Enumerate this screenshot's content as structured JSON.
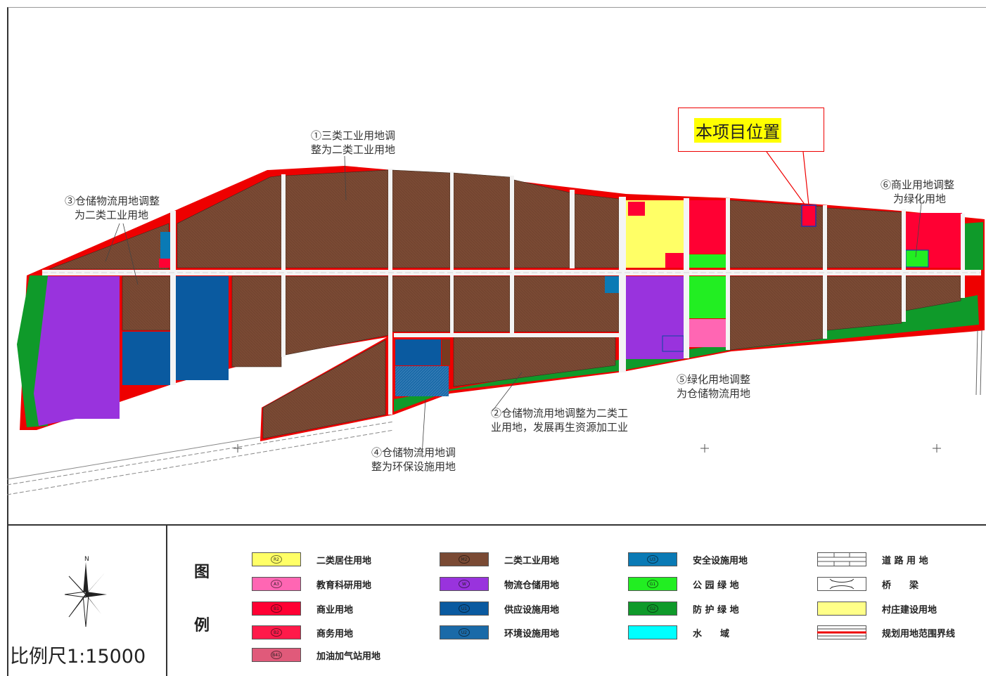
{
  "colors": {
    "industrial": "#7a4a34",
    "residential": "#ffff66",
    "education": "#ff66b3",
    "commercial": "#ff0033",
    "business": "#ff1a4a",
    "gas_station": "#e05a7a",
    "logistics": "#9933dd",
    "supply": "#0a5aa0",
    "environmental": "#1a6aa8",
    "safety": "#0a7ab5",
    "park": "#22ee22",
    "protective_green": "#0f9a2a",
    "water": "#00ffff",
    "village": "#ffff88",
    "boundary": "#ee0000"
  },
  "callout": {
    "label": "本项目位置"
  },
  "notes": [
    {
      "id": "note-1",
      "lines": [
        "①三类工业用地调",
        "整为二类工业用地"
      ]
    },
    {
      "id": "note-2",
      "lines": [
        "②仓储物流用地调整为二类工",
        "业用地，发展再生资源加工业"
      ]
    },
    {
      "id": "note-3",
      "lines": [
        "③仓储物流用地调整",
        "为二类工业用地"
      ]
    },
    {
      "id": "note-4",
      "lines": [
        "④仓储物流用地调",
        "整为环保设施用地"
      ]
    },
    {
      "id": "note-5",
      "lines": [
        "⑤绿化用地调整",
        "为仓储物流用地"
      ]
    },
    {
      "id": "note-6",
      "lines": [
        "⑥商业用地调整",
        "为绿化用地"
      ]
    }
  ],
  "legend": {
    "title_top": "图",
    "title_bottom": "例",
    "items": [
      {
        "label": "二类居住用地",
        "code": "R2",
        "color": "#ffff66"
      },
      {
        "label": "教育科研用地",
        "code": "A3",
        "color": "#ff66b3"
      },
      {
        "label": "商业用地",
        "code": "B1",
        "color": "#ff0033"
      },
      {
        "label": "商务用地",
        "code": "B2",
        "color": "#ff1a4a"
      },
      {
        "label": "加油加气站用地",
        "code": "B41",
        "color": "#e05a7a"
      },
      {
        "label": "二类工业用地",
        "code": "M2",
        "color": "#7a4a34"
      },
      {
        "label": "物流仓储用地",
        "code": "W",
        "color": "#9933dd"
      },
      {
        "label": "供应设施用地",
        "code": "U1",
        "color": "#0a5aa0"
      },
      {
        "label": "环境设施用地",
        "code": "U2",
        "color": "#1a6aa8"
      },
      {
        "label": "安全设施用地",
        "code": "U3",
        "color": "#0a7ab5"
      },
      {
        "label": "公 园 绿 地",
        "code": "G1",
        "color": "#22ee22"
      },
      {
        "label": "防 护 绿 地",
        "code": "G2",
        "color": "#0f9a2a"
      },
      {
        "label": "水　　域",
        "code": "",
        "color": "#00ffff"
      },
      {
        "label": "道 路 用 地",
        "code": "",
        "color": "#ffffff"
      },
      {
        "label": "桥　　梁",
        "code": "",
        "color": "#ffffff"
      },
      {
        "label": "村庄建设用地",
        "code": "",
        "color": "#ffff88"
      },
      {
        "label": "规划用地范围界线",
        "code": "",
        "color": "#ffffff"
      }
    ]
  },
  "scale": {
    "label": "比例尺1:15000"
  },
  "north_label": "N"
}
